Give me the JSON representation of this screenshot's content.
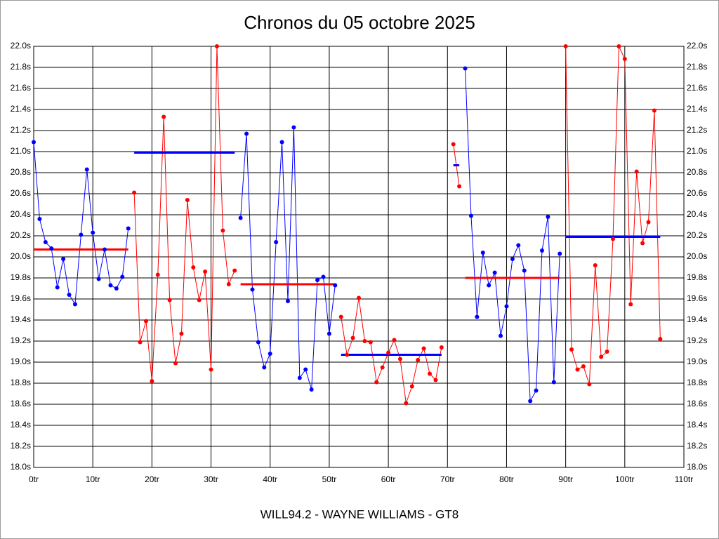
{
  "chart_data": {
    "type": "line",
    "title": "Chronos du 05 octobre 2025",
    "xlabel": "WILL94.2 - WAYNE WILLIAMS - GT8",
    "xlim": [
      0,
      110
    ],
    "ylim": [
      18.0,
      22.0
    ],
    "grid": true,
    "xticks": [
      {
        "value": 0,
        "label": "0tr"
      },
      {
        "value": 10,
        "label": "10tr"
      },
      {
        "value": 20,
        "label": "20tr"
      },
      {
        "value": 30,
        "label": "30tr"
      },
      {
        "value": 40,
        "label": "40tr"
      },
      {
        "value": 50,
        "label": "50tr"
      },
      {
        "value": 60,
        "label": "60tr"
      },
      {
        "value": 70,
        "label": "70tr"
      },
      {
        "value": 80,
        "label": "80tr"
      },
      {
        "value": 90,
        "label": "90tr"
      },
      {
        "value": 100,
        "label": "100tr"
      },
      {
        "value": 110,
        "label": "110tr"
      }
    ],
    "yticks": [
      {
        "value": 18.0,
        "label": "18.0s"
      },
      {
        "value": 18.2,
        "label": "18.2s"
      },
      {
        "value": 18.4,
        "label": "18.4s"
      },
      {
        "value": 18.6,
        "label": "18.6s"
      },
      {
        "value": 18.8,
        "label": "18.8s"
      },
      {
        "value": 19.0,
        "label": "19.0s"
      },
      {
        "value": 19.2,
        "label": "19.2s"
      },
      {
        "value": 19.4,
        "label": "19.4s"
      },
      {
        "value": 19.6,
        "label": "19.6s"
      },
      {
        "value": 19.8,
        "label": "19.8s"
      },
      {
        "value": 20.0,
        "label": "20.0s"
      },
      {
        "value": 20.2,
        "label": "20.2s"
      },
      {
        "value": 20.4,
        "label": "20.4s"
      },
      {
        "value": 20.6,
        "label": "20.6s"
      },
      {
        "value": 20.8,
        "label": "20.8s"
      },
      {
        "value": 21.0,
        "label": "21.0s"
      },
      {
        "value": 21.2,
        "label": "21.2s"
      },
      {
        "value": 21.4,
        "label": "21.4s"
      },
      {
        "value": 21.6,
        "label": "21.6s"
      },
      {
        "value": 21.8,
        "label": "21.8s"
      },
      {
        "value": 22.0,
        "label": "22.0s"
      }
    ],
    "series": [
      {
        "color": "#0000ff",
        "average": 20.07,
        "average_color": "#ff0000",
        "x": [
          0,
          1,
          2,
          3,
          4,
          5,
          6,
          7,
          8,
          9,
          10,
          11,
          12,
          13,
          14,
          15,
          16
        ],
        "values": [
          21.09,
          20.36,
          20.14,
          20.08,
          19.71,
          19.98,
          19.64,
          19.55,
          20.21,
          20.83,
          20.23,
          19.79,
          20.07,
          19.73,
          19.7,
          19.81,
          20.27
        ]
      },
      {
        "color": "#ff0000",
        "average": 20.99,
        "average_color": "#0000ff",
        "x": [
          17,
          18,
          19,
          20,
          21,
          22,
          23,
          24,
          25,
          26,
          27,
          28,
          29,
          30,
          31,
          32,
          33,
          34
        ],
        "values": [
          20.61,
          19.19,
          19.39,
          18.82,
          19.83,
          21.33,
          19.59,
          18.99,
          19.27,
          20.54,
          19.9,
          19.59,
          19.86,
          18.93,
          22.0,
          20.25,
          19.74,
          19.87
        ]
      },
      {
        "color": "#0000ff",
        "average": 19.74,
        "average_color": "#ff0000",
        "x": [
          35,
          36,
          37,
          38,
          39,
          40,
          41,
          42,
          43,
          44,
          45,
          46,
          47,
          48,
          49,
          50,
          51
        ],
        "values": [
          20.37,
          21.17,
          19.69,
          19.19,
          18.95,
          19.08,
          20.14,
          21.09,
          19.58,
          21.23,
          18.85,
          18.93,
          18.74,
          19.78,
          19.81,
          19.27,
          19.73
        ]
      },
      {
        "color": "#ff0000",
        "average": 19.07,
        "average_color": "#0000ff",
        "x": [
          52,
          53,
          54,
          55,
          56,
          57,
          58,
          59,
          60,
          61,
          62,
          63,
          64,
          65,
          66,
          67,
          68,
          69
        ],
        "values": [
          19.43,
          19.07,
          19.23,
          19.61,
          19.2,
          19.19,
          18.81,
          18.95,
          19.09,
          19.21,
          19.03,
          18.61,
          18.77,
          19.02,
          19.13,
          18.89,
          18.83,
          19.14
        ]
      },
      {
        "color": "#ff0000",
        "average": 20.87,
        "average_color": "#0000ff",
        "x": [
          71,
          72
        ],
        "values": [
          21.07,
          20.67
        ]
      },
      {
        "color": "#0000ff",
        "average": 19.8,
        "average_color": "#ff0000",
        "x": [
          73,
          74,
          75,
          76,
          77,
          78,
          79,
          80,
          81,
          82,
          83,
          84,
          85,
          86,
          87,
          88,
          89
        ],
        "values": [
          21.79,
          20.39,
          19.43,
          20.04,
          19.73,
          19.85,
          19.25,
          19.53,
          19.98,
          20.11,
          19.87,
          18.63,
          18.73,
          20.06,
          20.38,
          18.81,
          20.03
        ]
      },
      {
        "color": "#ff0000",
        "average": 20.19,
        "average_color": "#0000ff",
        "x": [
          90,
          91,
          92,
          93,
          94,
          95,
          96,
          97,
          98,
          99,
          100,
          101,
          102,
          103,
          104,
          105,
          106
        ],
        "values": [
          22.0,
          19.12,
          18.93,
          18.96,
          18.79,
          19.92,
          19.05,
          19.1,
          20.17,
          22.0,
          21.88,
          19.55,
          20.81,
          20.13,
          20.33,
          21.39,
          19.22
        ]
      }
    ]
  }
}
